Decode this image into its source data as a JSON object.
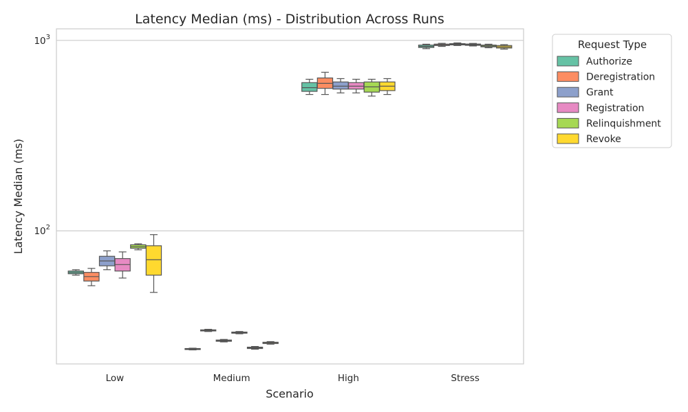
{
  "chart_data": {
    "type": "box",
    "title": "Latency Median (ms) - Distribution Across Runs",
    "xlabel": "Scenario",
    "ylabel": "Latency Median (ms)",
    "yscale": "log",
    "ylim": [
      20,
      1150
    ],
    "yticks": [
      {
        "value": 100,
        "base": "10",
        "exp": "2"
      },
      {
        "value": 1000,
        "base": "10",
        "exp": "3"
      }
    ],
    "grid": "horizontal",
    "categories": [
      "Low",
      "Medium",
      "High",
      "Stress"
    ],
    "legend": {
      "title": "Request Type",
      "placement": "outside-upper-right"
    },
    "series": [
      {
        "name": "Authorize",
        "color": "#66c2a5",
        "boxes": [
          {
            "min": 58.5,
            "q1": 59.5,
            "median": 60.5,
            "q3": 61.5,
            "max": 62.5
          },
          {
            "min": 23.7,
            "q1": 23.85,
            "median": 24.0,
            "q3": 24.1,
            "max": 24.2
          },
          {
            "min": 520,
            "q1": 540,
            "median": 565,
            "q3": 600,
            "max": 625
          },
          {
            "min": 905,
            "q1": 918,
            "median": 930,
            "q3": 945,
            "max": 955
          }
        ]
      },
      {
        "name": "Deregistration",
        "color": "#fc8d62",
        "boxes": [
          {
            "min": 51.5,
            "q1": 54.5,
            "median": 57.5,
            "q3": 60.5,
            "max": 63.5
          },
          {
            "min": 29.6,
            "q1": 29.8,
            "median": 30.0,
            "q3": 30.2,
            "max": 30.4
          },
          {
            "min": 520,
            "q1": 560,
            "median": 595,
            "q3": 635,
            "max": 680
          },
          {
            "min": 930,
            "q1": 940,
            "median": 948,
            "q3": 956,
            "max": 965
          }
        ]
      },
      {
        "name": "Grant",
        "color": "#8da0cb",
        "boxes": [
          {
            "min": 62.5,
            "q1": 65.5,
            "median": 69.5,
            "q3": 73.5,
            "max": 78.5
          },
          {
            "min": 26.1,
            "q1": 26.3,
            "median": 26.5,
            "q3": 26.7,
            "max": 26.9
          },
          {
            "min": 530,
            "q1": 555,
            "median": 575,
            "q3": 605,
            "max": 630
          },
          {
            "min": 940,
            "q1": 947,
            "median": 955,
            "q3": 962,
            "max": 970
          }
        ]
      },
      {
        "name": "Registration",
        "color": "#e78ac3",
        "boxes": [
          {
            "min": 56.5,
            "q1": 61.5,
            "median": 66.5,
            "q3": 71.5,
            "max": 77.5
          },
          {
            "min": 28.8,
            "q1": 29.0,
            "median": 29.2,
            "q3": 29.4,
            "max": 29.6
          },
          {
            "min": 530,
            "q1": 555,
            "median": 575,
            "q3": 600,
            "max": 625
          },
          {
            "min": 935,
            "q1": 942,
            "median": 950,
            "q3": 957,
            "max": 964
          }
        ]
      },
      {
        "name": "Relinquishment",
        "color": "#a6d854",
        "boxes": [
          {
            "min": 79.5,
            "q1": 81.0,
            "median": 82.5,
            "q3": 84.5,
            "max": 85.5
          },
          {
            "min": 23.9,
            "q1": 24.1,
            "median": 24.3,
            "q3": 24.5,
            "max": 24.7
          },
          {
            "min": 510,
            "q1": 535,
            "median": 570,
            "q3": 605,
            "max": 625
          },
          {
            "min": 915,
            "q1": 925,
            "median": 935,
            "q3": 945,
            "max": 955
          }
        ]
      },
      {
        "name": "Revoke",
        "color": "#ffd92f",
        "boxes": [
          {
            "min": 47.5,
            "q1": 58.5,
            "median": 70.5,
            "q3": 83.5,
            "max": 95.5
          },
          {
            "min": 25.4,
            "q1": 25.6,
            "median": 25.8,
            "q3": 26.0,
            "max": 26.2
          },
          {
            "min": 520,
            "q1": 545,
            "median": 575,
            "q3": 605,
            "max": 630
          },
          {
            "min": 900,
            "q1": 912,
            "median": 925,
            "q3": 940,
            "max": 950
          }
        ]
      }
    ]
  }
}
